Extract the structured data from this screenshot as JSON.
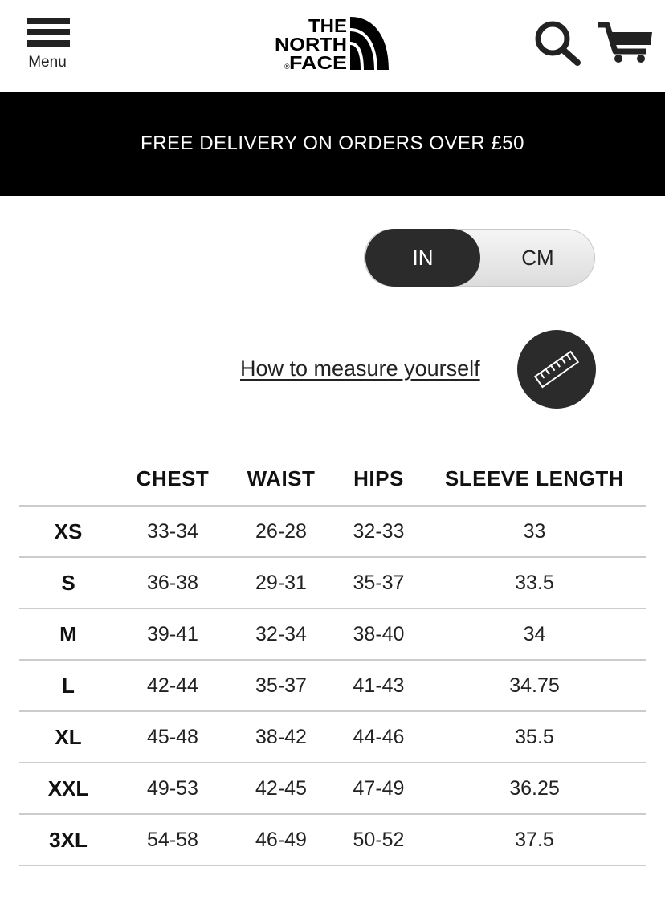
{
  "header": {
    "menu_label": "Menu",
    "logo_text": "THE NORTH FACE",
    "icons": [
      "menu-icon",
      "search-icon",
      "cart-icon"
    ]
  },
  "banner": {
    "text": "FREE DELIVERY ON ORDERS OVER £50"
  },
  "unit_toggle": {
    "options": [
      "IN",
      "CM"
    ],
    "selected": "IN"
  },
  "measure": {
    "link_text": "How to measure yourself",
    "icon": "ruler-icon"
  },
  "size_table": {
    "headers": [
      "",
      "CHEST",
      "WAIST",
      "HIPS",
      "SLEEVE LENGTH"
    ],
    "rows": [
      [
        "XS",
        "33-34",
        "26-28",
        "32-33",
        "33"
      ],
      [
        "S",
        "36-38",
        "29-31",
        "35-37",
        "33.5"
      ],
      [
        "M",
        "39-41",
        "32-34",
        "38-40",
        "34"
      ],
      [
        "L",
        "42-44",
        "35-37",
        "41-43",
        "34.75"
      ],
      [
        "XL",
        "45-48",
        "38-42",
        "44-46",
        "35.5"
      ],
      [
        "XXL",
        "49-53",
        "42-45",
        "47-49",
        "36.25"
      ],
      [
        "3XL",
        "54-58",
        "46-49",
        "50-52",
        "37.5"
      ]
    ]
  }
}
